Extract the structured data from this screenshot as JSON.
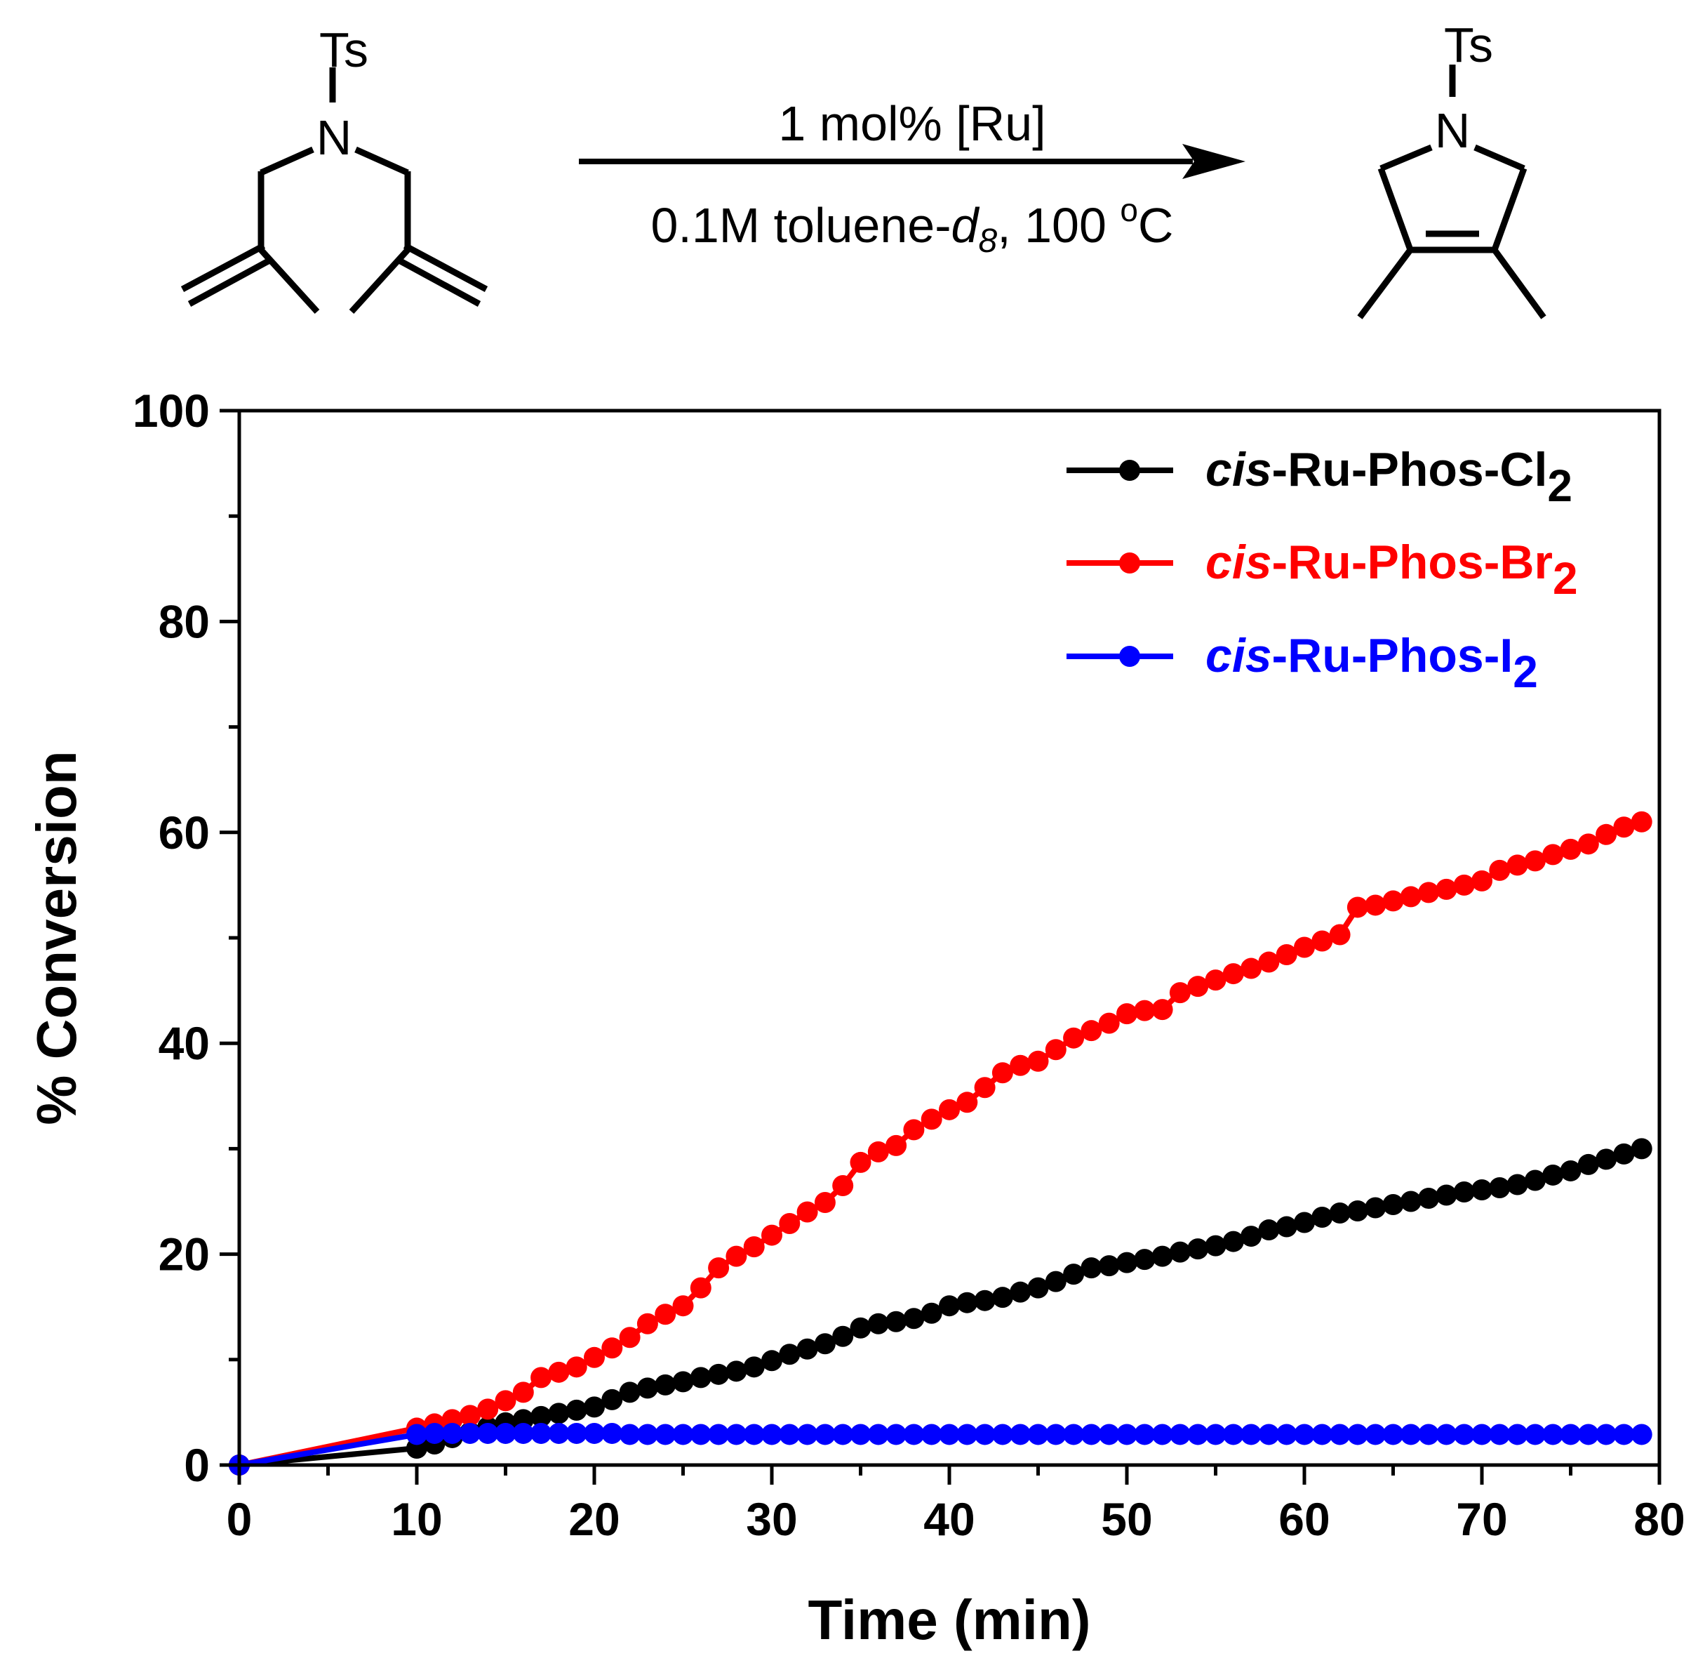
{
  "scheme": {
    "reactant_substituent": "Ts",
    "reactant_atom": "N",
    "product_substituent": "Ts",
    "product_atom": "N",
    "catalyst_label": "1 mol% [Ru]",
    "conditions_prefix": "0.1M toluene-",
    "conditions_solvent_italic": "d",
    "conditions_solvent_sub": "8",
    "conditions_sep": ", 100 ",
    "conditions_degree": "o",
    "conditions_unit": "C"
  },
  "chart_data": {
    "type": "scatter",
    "title": "",
    "xlabel": "Time (min)",
    "ylabel": "% Conversion",
    "xlim": [
      0,
      80
    ],
    "ylim": [
      0,
      100
    ],
    "x_ticks": [
      0,
      10,
      20,
      30,
      40,
      50,
      60,
      70,
      80
    ],
    "y_ticks": [
      0,
      20,
      40,
      60,
      80,
      100
    ],
    "x_tick_labels": [
      "0",
      "10",
      "20",
      "30",
      "40",
      "50",
      "60",
      "70",
      "80"
    ],
    "y_tick_labels": [
      "0",
      "20",
      "40",
      "60",
      "80",
      "100"
    ],
    "grid": false,
    "legend_position": "top-right",
    "x": [
      0,
      10,
      11,
      12,
      13,
      14,
      15,
      16,
      17,
      18,
      19,
      20,
      21,
      22,
      23,
      24,
      25,
      26,
      27,
      28,
      29,
      30,
      31,
      32,
      33,
      34,
      35,
      36,
      37,
      38,
      39,
      40,
      41,
      42,
      43,
      44,
      45,
      46,
      47,
      48,
      49,
      50,
      51,
      52,
      53,
      54,
      55,
      56,
      57,
      58,
      59,
      60,
      61,
      62,
      63,
      64,
      65,
      66,
      67,
      68,
      69,
      70,
      71,
      72,
      73,
      74,
      75,
      76,
      77,
      78,
      79
    ],
    "series": [
      {
        "name_italic": "cis",
        "name_main": "-Ru-Phos-Cl",
        "name_sub": "2",
        "color": "#000000",
        "values": [
          0,
          1.6,
          2.0,
          2.6,
          3.1,
          3.6,
          4.0,
          4.3,
          4.6,
          4.9,
          5.2,
          5.5,
          6.2,
          6.9,
          7.3,
          7.6,
          7.9,
          8.3,
          8.6,
          8.9,
          9.3,
          9.9,
          10.5,
          11.0,
          11.5,
          12.2,
          13.0,
          13.4,
          13.6,
          13.9,
          14.4,
          15.1,
          15.4,
          15.6,
          15.9,
          16.4,
          16.8,
          17.4,
          18.1,
          18.7,
          18.9,
          19.2,
          19.5,
          19.8,
          20.2,
          20.5,
          20.8,
          21.2,
          21.7,
          22.3,
          22.6,
          23.0,
          23.5,
          23.9,
          24.1,
          24.4,
          24.7,
          25.0,
          25.3,
          25.6,
          25.9,
          26.1,
          26.3,
          26.6,
          27.0,
          27.5,
          27.9,
          28.5,
          29.0,
          29.5,
          30.0
        ]
      },
      {
        "name_italic": "cis",
        "name_main": "-Ru-Phos-Br",
        "name_sub": "2",
        "color": "#ff0000",
        "values": [
          0,
          3.5,
          3.9,
          4.3,
          4.7,
          5.3,
          6.1,
          6.9,
          8.3,
          8.8,
          9.3,
          10.2,
          11.1,
          12.1,
          13.4,
          14.3,
          15.1,
          16.8,
          18.7,
          19.8,
          20.7,
          21.8,
          22.9,
          24.0,
          24.9,
          26.5,
          28.7,
          29.7,
          30.3,
          31.8,
          32.8,
          33.7,
          34.4,
          35.8,
          37.2,
          37.9,
          38.3,
          39.4,
          40.5,
          41.2,
          41.9,
          42.8,
          43.1,
          43.2,
          44.8,
          45.4,
          46.0,
          46.6,
          47.1,
          47.7,
          48.4,
          49.1,
          49.7,
          50.3,
          52.9,
          53.1,
          53.5,
          53.9,
          54.3,
          54.6,
          55.0,
          55.4,
          56.4,
          56.9,
          57.3,
          57.9,
          58.4,
          58.9,
          59.8,
          60.5,
          61.0
        ]
      },
      {
        "name_italic": "cis",
        "name_main": "-Ru-Phos-I",
        "name_sub": "2",
        "color": "#0000ff",
        "values": [
          0,
          2.9,
          3.0,
          3.0,
          3.0,
          3.0,
          3.0,
          3.0,
          3.0,
          3.0,
          3.0,
          3.0,
          3.0,
          2.9,
          2.9,
          2.9,
          2.9,
          2.9,
          2.9,
          2.9,
          2.9,
          2.9,
          2.9,
          2.9,
          2.9,
          2.9,
          2.9,
          2.9,
          2.9,
          2.9,
          2.9,
          2.9,
          2.9,
          2.9,
          2.9,
          2.9,
          2.9,
          2.9,
          2.9,
          2.9,
          2.9,
          2.9,
          2.9,
          2.9,
          2.9,
          2.9,
          2.9,
          2.9,
          2.9,
          2.9,
          2.9,
          2.9,
          2.9,
          2.9,
          2.9,
          2.9,
          2.9,
          2.9,
          2.9,
          2.9,
          2.9,
          2.9,
          2.9,
          2.9,
          2.9,
          2.9,
          2.9,
          2.9,
          2.9,
          2.9,
          2.9
        ]
      }
    ]
  }
}
